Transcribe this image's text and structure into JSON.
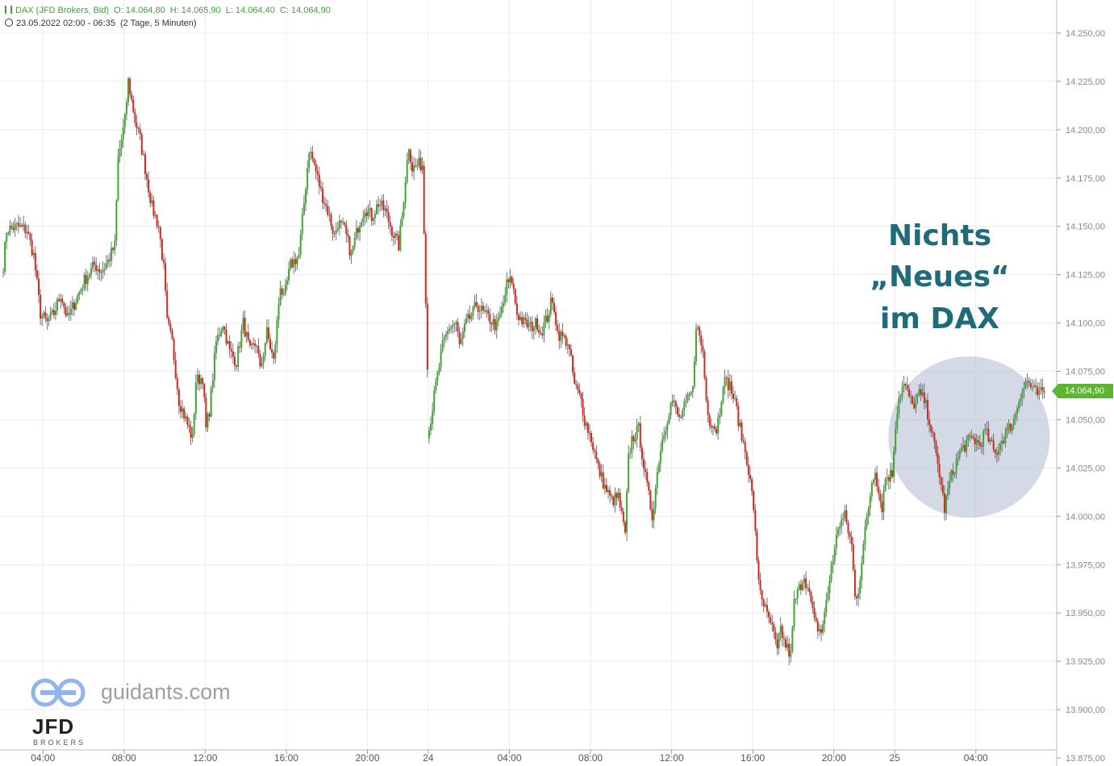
{
  "header": {
    "instrument": "DAX (JFD Brokers, Bid)",
    "open": "O: 14.064,80",
    "high": "H: 14.065,90",
    "low": "L: 14.064,40",
    "close": "C: 14.064,90",
    "range": "23.05.2022 02:00 - 06:35",
    "period": "(2 Tage, 5 Minuten)"
  },
  "annotation": {
    "line1": "Nichts",
    "line2": "„Neues“",
    "line3": "im DAX"
  },
  "watermark": {
    "site": "guidants.com",
    "broker": "JFD",
    "broker_sub": "BROKERS"
  },
  "last_price": "14.064,90",
  "colors": {
    "up": "#3fa535",
    "down": "#d9261c",
    "grid": "#ececec",
    "annotation": "#1f6b7a",
    "highlight": "#aebccf"
  },
  "chart_data": {
    "type": "candlestick",
    "title": "",
    "xlabel": "",
    "ylabel": "",
    "ylim": [
      13875,
      14265
    ],
    "y_ticks": [
      "14.250,00",
      "14.225,00",
      "14.200,00",
      "14.175,00",
      "14.150,00",
      "14.125,00",
      "14.100,00",
      "14.075,00",
      "14.050,00",
      "14.025,00",
      "14.000,00",
      "13.975,00",
      "13.950,00",
      "13.925,00",
      "13.900,00",
      "13.875,00"
    ],
    "y_tick_values": [
      14250,
      14225,
      14200,
      14175,
      14150,
      14125,
      14100,
      14075,
      14050,
      14025,
      14000,
      13975,
      13950,
      13925,
      13900,
      13875
    ],
    "x_ticks": [
      "04:00",
      "08:00",
      "12:00",
      "16:00",
      "20:00",
      "24",
      "04:00",
      "08:00",
      "12:00",
      "16:00",
      "20:00",
      "25",
      "04:00"
    ],
    "x_tick_slot": [
      24,
      72,
      120,
      168,
      216,
      252,
      300,
      348,
      396,
      444,
      492,
      528,
      576
    ],
    "bar_minutes": 5,
    "path": [
      [
        0,
        14130
      ],
      [
        2,
        14148
      ],
      [
        8,
        14150
      ],
      [
        14,
        14148
      ],
      [
        18,
        14135
      ],
      [
        22,
        14105
      ],
      [
        26,
        14100
      ],
      [
        30,
        14105
      ],
      [
        34,
        14115
      ],
      [
        38,
        14102
      ],
      [
        43,
        14112
      ],
      [
        48,
        14122
      ],
      [
        54,
        14130
      ],
      [
        58,
        14127
      ],
      [
        62,
        14132
      ],
      [
        66,
        14140
      ],
      [
        68,
        14185
      ],
      [
        72,
        14205
      ],
      [
        74,
        14225
      ],
      [
        78,
        14205
      ],
      [
        81,
        14195
      ],
      [
        85,
        14175
      ],
      [
        88,
        14160
      ],
      [
        92,
        14150
      ],
      [
        95,
        14128
      ],
      [
        97,
        14100
      ],
      [
        100,
        14090
      ],
      [
        104,
        14060
      ],
      [
        108,
        14050
      ],
      [
        112,
        14040
      ],
      [
        114,
        14070
      ],
      [
        118,
        14072
      ],
      [
        120,
        14045
      ],
      [
        122,
        14055
      ],
      [
        126,
        14090
      ],
      [
        130,
        14100
      ],
      [
        134,
        14085
      ],
      [
        138,
        14080
      ],
      [
        142,
        14100
      ],
      [
        146,
        14085
      ],
      [
        150,
        14090
      ],
      [
        152,
        14075
      ],
      [
        156,
        14095
      ],
      [
        160,
        14080
      ],
      [
        162,
        14100
      ],
      [
        164,
        14120
      ],
      [
        166,
        14112
      ],
      [
        170,
        14130
      ],
      [
        175,
        14135
      ],
      [
        178,
        14162
      ],
      [
        181,
        14190
      ],
      [
        184,
        14182
      ],
      [
        188,
        14168
      ],
      [
        192,
        14158
      ],
      [
        196,
        14145
      ],
      [
        198,
        14152
      ],
      [
        202,
        14148
      ],
      [
        206,
        14135
      ],
      [
        210,
        14150
      ],
      [
        214,
        14160
      ],
      [
        218,
        14155
      ],
      [
        222,
        14162
      ],
      [
        226,
        14158
      ],
      [
        230,
        14148
      ],
      [
        234,
        14140
      ],
      [
        236,
        14155
      ],
      [
        238,
        14175
      ],
      [
        240,
        14192
      ],
      [
        242,
        14180
      ],
      [
        246,
        14182
      ],
      [
        248,
        14182
      ],
      [
        252,
        14045
      ],
      [
        256,
        14068
      ],
      [
        260,
        14088
      ],
      [
        264,
        14098
      ],
      [
        268,
        14100
      ],
      [
        270,
        14088
      ],
      [
        274,
        14100
      ],
      [
        278,
        14105
      ],
      [
        280,
        14110
      ],
      [
        284,
        14105
      ],
      [
        288,
        14102
      ],
      [
        292,
        14098
      ],
      [
        296,
        14110
      ],
      [
        298,
        14120
      ],
      [
        301,
        14122
      ],
      [
        304,
        14105
      ],
      [
        308,
        14100
      ],
      [
        312,
        14098
      ],
      [
        316,
        14100
      ],
      [
        318,
        14095
      ],
      [
        322,
        14103
      ],
      [
        324,
        14110
      ],
      [
        326,
        14108
      ],
      [
        328,
        14095
      ],
      [
        334,
        14090
      ],
      [
        336,
        14080
      ],
      [
        338,
        14068
      ],
      [
        342,
        14060
      ],
      [
        344,
        14050
      ],
      [
        348,
        14040
      ],
      [
        352,
        14025
      ],
      [
        356,
        14015
      ],
      [
        360,
        14008
      ],
      [
        364,
        14010
      ],
      [
        368,
        13990
      ],
      [
        370,
        14030
      ],
      [
        372,
        14040
      ],
      [
        376,
        14045
      ],
      [
        380,
        14020
      ],
      [
        384,
        14000
      ],
      [
        388,
        14030
      ],
      [
        390,
        14040
      ],
      [
        394,
        14055
      ],
      [
        396,
        14060
      ],
      [
        400,
        14050
      ],
      [
        404,
        14058
      ],
      [
        408,
        14065
      ],
      [
        410,
        14100
      ],
      [
        414,
        14085
      ],
      [
        416,
        14060
      ],
      [
        418,
        14050
      ],
      [
        422,
        14045
      ],
      [
        424,
        14055
      ],
      [
        426,
        14070
      ],
      [
        430,
        14068
      ],
      [
        434,
        14055
      ],
      [
        436,
        14045
      ],
      [
        440,
        14030
      ],
      [
        444,
        14005
      ],
      [
        446,
        13975
      ],
      [
        448,
        13962
      ],
      [
        452,
        13948
      ],
      [
        454,
        13945
      ],
      [
        456,
        13938
      ],
      [
        458,
        13930
      ],
      [
        460,
        13942
      ],
      [
        462,
        13935
      ],
      [
        466,
        13928
      ],
      [
        468,
        13955
      ],
      [
        470,
        13960
      ],
      [
        474,
        13970
      ],
      [
        478,
        13955
      ],
      [
        480,
        13945
      ],
      [
        484,
        13940
      ],
      [
        486,
        13950
      ],
      [
        488,
        13960
      ],
      [
        490,
        13975
      ],
      [
        492,
        13982
      ],
      [
        494,
        13995
      ],
      [
        498,
        14000
      ],
      [
        502,
        13985
      ],
      [
        504,
        13958
      ],
      [
        506,
        13962
      ],
      [
        510,
        13992
      ],
      [
        514,
        14018
      ],
      [
        516,
        14025
      ],
      [
        518,
        14012
      ],
      [
        520,
        14005
      ],
      [
        522,
        14020
      ],
      [
        526,
        14022
      ],
      [
        528,
        14048
      ],
      [
        530,
        14062
      ],
      [
        533,
        14068
      ],
      [
        536,
        14062
      ],
      [
        538,
        14057
      ],
      [
        542,
        14063
      ],
      [
        545,
        14060
      ],
      [
        548,
        14050
      ],
      [
        551,
        14036
      ],
      [
        554,
        14022
      ],
      [
        557,
        14004
      ],
      [
        560,
        14018
      ],
      [
        564,
        14028
      ],
      [
        566,
        14033
      ],
      [
        570,
        14038
      ],
      [
        574,
        14040
      ],
      [
        578,
        14037
      ],
      [
        581,
        14044
      ],
      [
        584,
        14038
      ],
      [
        587,
        14032
      ],
      [
        590,
        14038
      ],
      [
        594,
        14044
      ],
      [
        598,
        14050
      ],
      [
        602,
        14064
      ],
      [
        606,
        14070
      ],
      [
        609,
        14066
      ],
      [
        612,
        14063
      ],
      [
        616,
        14064
      ]
    ]
  }
}
